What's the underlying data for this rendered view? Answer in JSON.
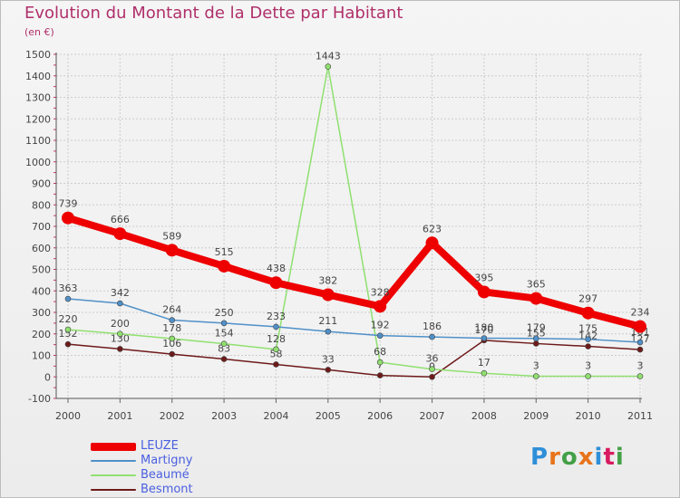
{
  "header": {
    "title": "Evolution du Montant de la Dette par Habitant",
    "unit": "(en €)"
  },
  "brand": {
    "logo_letters": [
      "P",
      "r",
      "o",
      "x",
      "i",
      "t",
      "i"
    ],
    "logo_colors": [
      "#2f8fd8",
      "#e8731a",
      "#43a047",
      "#e8731a",
      "#2f8fd8",
      "#d81b60",
      "#43a047"
    ]
  },
  "chart_data": {
    "type": "line",
    "title": "Evolution du Montant de la Dette par Habitant",
    "ylabel": "(en €)",
    "xlabel": "",
    "ylim": [
      -100,
      1500
    ],
    "yticks": [
      -100,
      0,
      100,
      200,
      300,
      400,
      500,
      600,
      700,
      800,
      900,
      1000,
      1100,
      1200,
      1300,
      1400,
      1500
    ],
    "grid": true,
    "legend_position": "bottom-left",
    "categories": [
      "2000",
      "2001",
      "2002",
      "2003",
      "2004",
      "2005",
      "2006",
      "2007",
      "2008",
      "2009",
      "2010",
      "2011"
    ],
    "series": [
      {
        "name": "LEUZE",
        "color": "#ee0000",
        "values": [
          739,
          666,
          589,
          515,
          438,
          382,
          328,
          623,
          395,
          365,
          297,
          234
        ]
      },
      {
        "name": "Martigny",
        "color": "#4f90c8",
        "values": [
          363,
          342,
          264,
          250,
          233,
          211,
          192,
          186,
          180,
          179,
          175,
          161
        ]
      },
      {
        "name": "Beaumé",
        "color": "#90e070",
        "values": [
          220,
          200,
          178,
          154,
          128,
          1443,
          68,
          36,
          17,
          3,
          3,
          3
        ]
      },
      {
        "name": "Besmont",
        "color": "#6e1a1a",
        "values": [
          152,
          130,
          106,
          83,
          58,
          33,
          7,
          0,
          170,
          155,
          142,
          127
        ]
      }
    ]
  }
}
